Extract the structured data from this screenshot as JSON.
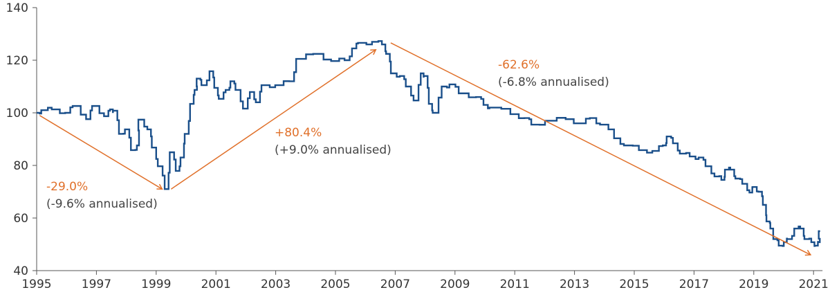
{
  "chart_data": {
    "type": "line",
    "title": "",
    "xlabel": "",
    "ylabel": "",
    "xlim": [
      1995,
      2021.3
    ],
    "ylim": [
      40,
      140
    ],
    "x_ticks": [
      "1995",
      "1997",
      "1999",
      "2001",
      "2003",
      "2005",
      "2007",
      "2009",
      "2011",
      "2013",
      "2015",
      "2017",
      "2019",
      "2021"
    ],
    "y_ticks": [
      "40",
      "60",
      "80",
      "100",
      "120",
      "140"
    ],
    "grid": false,
    "legend": "none",
    "colors": {
      "series": "#1a4f8a",
      "annotation": "#e0702a",
      "axis": "#555555"
    },
    "series": [
      {
        "x": [
          1995.0,
          1995.2,
          1995.55,
          1996.0,
          1996.25,
          1996.7,
          1996.9,
          1997.3,
          1997.5,
          1997.6,
          1997.8,
          1998.0,
          1998.2,
          1998.4,
          1998.45,
          1998.75,
          1998.9,
          1999.1,
          1999.33,
          1999.5,
          1999.7,
          1999.86,
          2000.0,
          2000.18,
          2000.33,
          2000.4,
          2000.56,
          2000.83,
          2000.99,
          2001.14,
          2001.37,
          2001.53,
          2001.7,
          2001.95,
          2002.18,
          2002.38,
          2002.57,
          2003.03,
          2003.5,
          2003.73,
          2004.3,
          2004.9,
          2005.35,
          2005.6,
          2005.8,
          2006.27,
          2006.6,
          2006.74,
          2006.9,
          2007.2,
          2007.4,
          2007.66,
          2007.9,
          2008.0,
          2008.17,
          2008.3,
          2008.6,
          2008.86,
          2009.17,
          2009.75,
          2010.0,
          2010.2,
          2010.9,
          2011.37,
          2011.6,
          2012.06,
          2012.75,
          2013.2,
          2013.56,
          2013.9,
          2014.37,
          2014.7,
          2015.2,
          2015.65,
          2016.0,
          2016.13,
          2016.34,
          2016.57,
          2016.9,
          2017.2,
          2017.43,
          2017.73,
          2017.96,
          2018.08,
          2018.26,
          2018.43,
          2018.66,
          2018.9,
          2019.0,
          2019.2,
          2019.35,
          2019.47,
          2019.6,
          2019.7,
          2019.88,
          2020.05,
          2020.16,
          2020.4,
          2020.6,
          2020.74,
          2020.97,
          2021.09,
          2021.2,
          2021.22
        ],
        "y": [
          100,
          101,
          101.3,
          100,
          102.6,
          97.6,
          102.6,
          98.7,
          101.3,
          100.8,
          92,
          93.7,
          85.8,
          87.6,
          97.4,
          93.7,
          86.8,
          79.7,
          71,
          85,
          77.9,
          83,
          92,
          103.4,
          108.7,
          113,
          110.5,
          115.8,
          109.5,
          105.3,
          108.7,
          112,
          108.7,
          101.6,
          107.9,
          104,
          110.5,
          110.5,
          112,
          120.5,
          122.4,
          119.7,
          120,
          124.5,
          126.6,
          127,
          126,
          122.4,
          115,
          114,
          110,
          104.7,
          115,
          114,
          103.4,
          100,
          110,
          110.8,
          107.4,
          106,
          103,
          102,
          99.5,
          98,
          95.5,
          97,
          97.6,
          96,
          98,
          95.5,
          90.3,
          87.6,
          85.8,
          85.5,
          87.6,
          91,
          88.4,
          84.5,
          83.4,
          83,
          79.7,
          75.8,
          74.5,
          78.4,
          78.4,
          75,
          73,
          69.7,
          71.8,
          70,
          65,
          58.7,
          56,
          52,
          49.5,
          50.8,
          52,
          56,
          56,
          52,
          50.8,
          49.5,
          50.8,
          55
        ]
      }
    ],
    "annotations": [
      {
        "pct": "-29.0%",
        "sub": "(-9.6% annualised)",
        "arrow_from": [
          1995.1,
          99
        ],
        "arrow_to": [
          1999.2,
          71
        ]
      },
      {
        "pct": "+80.4%",
        "sub": "(+9.0% annualised)",
        "arrow_from": [
          1999.5,
          71
        ],
        "arrow_to": [
          2006.35,
          124
        ]
      },
      {
        "pct": "-62.6%",
        "sub": "(-6.8% annualised)",
        "arrow_from": [
          2006.85,
          126.6
        ],
        "arrow_to": [
          2020.9,
          46
        ]
      }
    ]
  }
}
